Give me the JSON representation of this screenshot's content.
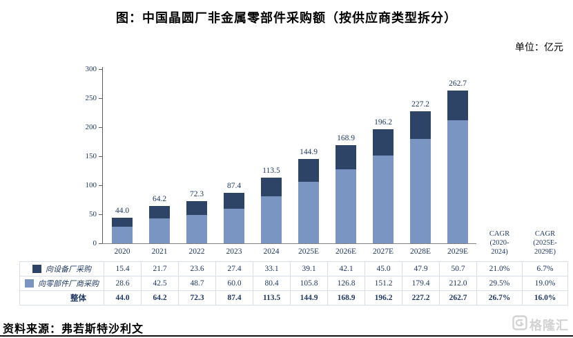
{
  "title": "图：中国晶圆厂非金属零部件采购额（按供应商类型拆分）",
  "unit_label": "单位：亿元",
  "source": "资料来源：弗若斯特沙利文",
  "watermark": "格隆汇",
  "colors": {
    "equipment_series": "#2E4467",
    "components_series": "#7A95C1",
    "text_navy": "#1F3864",
    "table_border": "#D8DEE8",
    "axis_line": "#808080"
  },
  "chart_data": {
    "type": "bar",
    "stacked": true,
    "grid": false,
    "legend_position": "table-left",
    "categories": [
      "2020",
      "2021",
      "2022",
      "2023",
      "2024",
      "2025E",
      "2026E",
      "2027E",
      "2028E",
      "2029E"
    ],
    "series": [
      {
        "name": "向设备厂采购",
        "color": "#2E4467",
        "stack_order": "top",
        "values": [
          15.4,
          21.7,
          23.6,
          27.4,
          33.1,
          39.1,
          42.1,
          45.0,
          47.9,
          50.7
        ]
      },
      {
        "name": "向零部件厂商采购",
        "color": "#7A95C1",
        "stack_order": "bottom",
        "values": [
          28.6,
          42.5,
          48.7,
          60.0,
          80.4,
          105.8,
          126.8,
          151.2,
          179.4,
          212.0
        ]
      }
    ],
    "totals": [
      44.0,
      64.2,
      72.3,
      87.4,
      113.5,
      144.9,
      168.9,
      196.2,
      227.2,
      262.7
    ],
    "total_labels": [
      "44.0",
      "64.2",
      "72.3",
      "87.4",
      "113.5",
      "144.9",
      "168.9",
      "196.2",
      "227.2",
      "262.7"
    ],
    "ylabel": "",
    "xlabel": "",
    "ylim": [
      0,
      300
    ],
    "yticks": [
      0,
      50,
      100,
      150,
      200,
      250,
      300
    ]
  },
  "cagr_headers": [
    {
      "lines": [
        "CAGR",
        "(2020-",
        "2024)"
      ]
    },
    {
      "lines": [
        "CAGR",
        "(2025E-",
        "2029E)"
      ]
    }
  ],
  "table": {
    "rows": [
      {
        "label": "向设备厂采购",
        "swatch": "#2E4467",
        "total": false,
        "values": [
          "15.4",
          "21.7",
          "23.6",
          "27.4",
          "33.1",
          "39.1",
          "42.1",
          "45.0",
          "47.9",
          "50.7"
        ],
        "cagr": [
          "21.0%",
          "6.7%"
        ]
      },
      {
        "label": "向零部件厂商采购",
        "swatch": "#7A95C1",
        "total": false,
        "values": [
          "28.6",
          "42.5",
          "48.7",
          "60.0",
          "80.4",
          "105.8",
          "126.8",
          "151.2",
          "179.4",
          "212.0"
        ],
        "cagr": [
          "29.5%",
          "19.0%"
        ]
      },
      {
        "label": "整体",
        "swatch": null,
        "total": true,
        "values": [
          "44.0",
          "64.2",
          "72.3",
          "87.4",
          "113.5",
          "144.9",
          "168.9",
          "196.2",
          "227.2",
          "262.7"
        ],
        "cagr": [
          "26.7%",
          "16.0%"
        ]
      }
    ]
  }
}
